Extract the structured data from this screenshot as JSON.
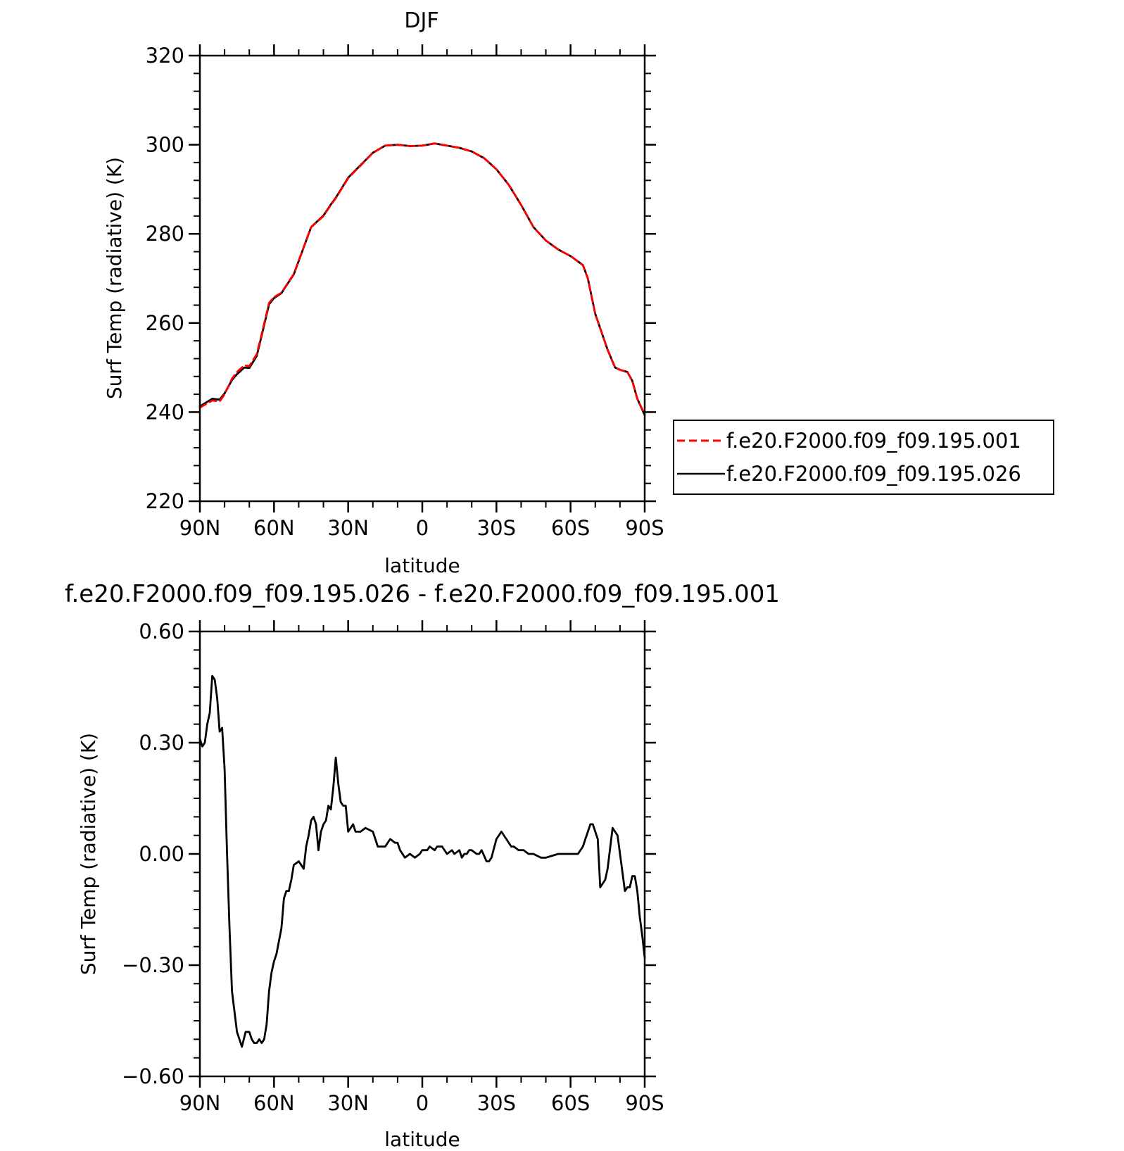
{
  "chart_data": [
    {
      "type": "line",
      "title": "DJF",
      "xlabel": "latitude",
      "ylabel": "Surf Temp (radiative) (K)",
      "xlim": [
        90,
        -90
      ],
      "ylim": [
        220,
        320
      ],
      "yticks": [
        220,
        240,
        260,
        280,
        300,
        320
      ],
      "ytick_labels": [
        "220",
        "240",
        "260",
        "280",
        "300",
        "320"
      ],
      "xticks": [
        90,
        60,
        30,
        0,
        -30,
        -60,
        -90
      ],
      "xtick_labels": [
        "90N",
        "60N",
        "30N",
        "0",
        "30S",
        "60S",
        "90S"
      ],
      "legend": {
        "placement": "right",
        "entries": [
          {
            "label": "f.e20.F2000.f09_f09.195.001",
            "color": "#ff0000",
            "style": "dashed"
          },
          {
            "label": "f.e20.F2000.f09_f09.195.026",
            "color": "#000000",
            "style": "solid"
          }
        ]
      },
      "series": [
        {
          "name": "f.e20.F2000.f09_f09.195.001",
          "color": "#ff0000",
          "style": "dashed",
          "x": [
            90,
            85,
            82,
            80,
            77,
            75,
            72,
            70,
            67,
            65,
            62,
            60,
            57,
            55,
            52,
            50,
            45,
            40,
            37,
            35,
            30,
            27,
            25,
            20,
            15,
            10,
            5,
            0,
            -5,
            -10,
            -15,
            -20,
            -25,
            -30,
            -35,
            -40,
            -45,
            -50,
            -55,
            -60,
            -65,
            -67,
            -70,
            -75,
            -78,
            -80,
            -83,
            -85,
            -87,
            -90
          ],
          "y": [
            241,
            242.6,
            242.4,
            244,
            247.5,
            249,
            250.5,
            250.3,
            253,
            257.5,
            264.5,
            265.8,
            266.8,
            268.5,
            271,
            274,
            281.5,
            284,
            286.5,
            288,
            292.5,
            294.2,
            295.3,
            298.2,
            299.8,
            300,
            299.7,
            299.8,
            300.3,
            299.8,
            299.3,
            298.5,
            297,
            294.5,
            291,
            286.5,
            281.5,
            278.5,
            276.5,
            275,
            273,
            270,
            262,
            254,
            250,
            249.5,
            249,
            247,
            243,
            239.5
          ]
        },
        {
          "name": "f.e20.F2000.f09_f09.195.026",
          "color": "#000000",
          "style": "solid",
          "x": [
            90,
            85,
            82,
            80,
            77,
            75,
            72,
            70,
            67,
            65,
            62,
            60,
            57,
            55,
            52,
            50,
            45,
            40,
            37,
            35,
            30,
            27,
            25,
            20,
            15,
            10,
            5,
            0,
            -5,
            -10,
            -15,
            -20,
            -25,
            -30,
            -35,
            -40,
            -45,
            -50,
            -55,
            -60,
            -65,
            -67,
            -70,
            -75,
            -78,
            -80,
            -83,
            -85,
            -87,
            -90
          ],
          "y": [
            241.3,
            243,
            242.8,
            244.2,
            247.2,
            248.5,
            250,
            249.9,
            252.6,
            257.2,
            264.2,
            265.6,
            266.7,
            268.4,
            270.9,
            273.9,
            281.5,
            284.1,
            286.6,
            288.1,
            292.6,
            294.3,
            295.4,
            298.2,
            299.8,
            300,
            299.7,
            299.8,
            300.3,
            299.8,
            299.3,
            298.5,
            297,
            294.5,
            291,
            286.5,
            281.5,
            278.5,
            276.5,
            275,
            273,
            270,
            262,
            254,
            250,
            249.5,
            249,
            247,
            243,
            239.3
          ]
        }
      ]
    },
    {
      "type": "line",
      "title": "f.e20.F2000.f09_f09.195.026 - f.e20.F2000.f09_f09.195.001",
      "xlabel": "latitude",
      "ylabel": "Surf Temp (radiative) (K)",
      "xlim": [
        90,
        -90
      ],
      "ylim": [
        -0.6,
        0.6
      ],
      "yticks": [
        -0.6,
        -0.3,
        0,
        0.3,
        0.6
      ],
      "ytick_labels": [
        "−0.60",
        "−0.30",
        "0.00",
        "0.30",
        "0.60"
      ],
      "xticks": [
        90,
        60,
        30,
        0,
        -30,
        -60,
        -90
      ],
      "xtick_labels": [
        "90N",
        "60N",
        "30N",
        "0",
        "30S",
        "60S",
        "90S"
      ],
      "series": [
        {
          "color": "#000000",
          "style": "solid",
          "x": [
            90,
            89,
            88,
            87,
            86,
            85,
            84,
            83,
            82,
            81,
            80,
            79,
            78,
            77,
            75,
            73,
            71.5,
            70,
            69,
            68,
            67,
            66,
            65,
            64,
            63,
            62,
            61,
            60,
            59,
            57,
            56,
            55,
            54,
            53,
            52,
            50,
            49,
            48,
            47,
            46,
            45,
            44,
            43,
            42,
            41,
            40,
            39,
            38,
            37,
            36,
            35,
            34,
            33,
            32,
            31,
            30,
            28,
            27,
            25,
            23,
            20,
            18,
            15,
            13,
            11,
            10,
            9,
            7,
            5,
            3,
            1,
            0,
            -2,
            -3,
            -5,
            -6,
            -7,
            -8,
            -10,
            -12,
            -13,
            -15,
            -16,
            -17,
            -18,
            -19,
            -20,
            -22,
            -23,
            -24,
            -26,
            -27,
            -28,
            -30,
            -32,
            -34,
            -36,
            -37,
            -39,
            -41,
            -43,
            -45,
            -48,
            -50,
            -55,
            -60,
            -63,
            -65,
            -66,
            -68,
            -69,
            -71,
            -72,
            -74,
            -75,
            -77,
            -78,
            -79,
            -80,
            -81,
            -82,
            -83,
            -84,
            -85,
            -86,
            -87,
            -88,
            -89,
            -90
          ],
          "y": [
            0.31,
            0.29,
            0.3,
            0.35,
            0.38,
            0.48,
            0.47,
            0.42,
            0.33,
            0.34,
            0.23,
            0.0,
            -0.2,
            -0.37,
            -0.48,
            -0.52,
            -0.48,
            -0.48,
            -0.5,
            -0.51,
            -0.51,
            -0.5,
            -0.51,
            -0.5,
            -0.46,
            -0.37,
            -0.32,
            -0.29,
            -0.27,
            -0.2,
            -0.12,
            -0.1,
            -0.1,
            -0.07,
            -0.03,
            -0.02,
            -0.03,
            -0.04,
            0.02,
            0.05,
            0.09,
            0.1,
            0.08,
            0.01,
            0.06,
            0.08,
            0.09,
            0.13,
            0.12,
            0.18,
            0.26,
            0.19,
            0.14,
            0.13,
            0.13,
            0.06,
            0.08,
            0.06,
            0.06,
            0.07,
            0.06,
            0.02,
            0.02,
            0.04,
            0.03,
            0.03,
            0.01,
            -0.01,
            0.0,
            -0.01,
            0.0,
            0.01,
            0.01,
            0.02,
            0.01,
            0.02,
            0.02,
            0.02,
            0.0,
            0.01,
            0.0,
            0.01,
            -0.01,
            0.0,
            0.0,
            0.01,
            0.01,
            0.0,
            0.0,
            0.01,
            -0.02,
            -0.02,
            -0.01,
            0.04,
            0.06,
            0.04,
            0.02,
            0.02,
            0.01,
            0.01,
            0.0,
            0.0,
            -0.01,
            -0.01,
            0.0,
            0.0,
            0.0,
            0.02,
            0.04,
            0.08,
            0.08,
            0.04,
            -0.09,
            -0.07,
            -0.04,
            0.07,
            0.06,
            0.05,
            0.0,
            -0.05,
            -0.1,
            -0.09,
            -0.09,
            -0.06,
            -0.06,
            -0.1,
            -0.17,
            -0.22,
            -0.28
          ]
        }
      ]
    }
  ]
}
